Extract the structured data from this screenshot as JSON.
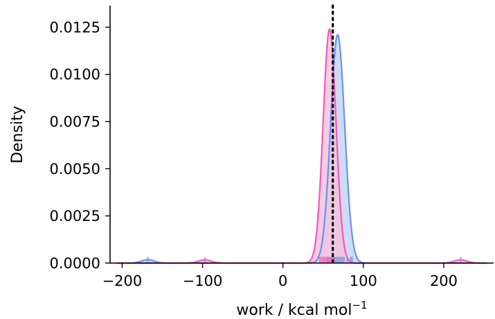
{
  "chart_data": {
    "type": "area",
    "xlabel": "work / kcal mol",
    "xlabel_superscript": "−1",
    "ylabel": "Density",
    "xlim": [
      -215,
      262
    ],
    "ylim": [
      0,
      0.01365
    ],
    "x_ticks": [
      -200,
      -100,
      0,
      100,
      200
    ],
    "x_tick_labels": [
      "−200",
      "−100",
      "0",
      "100",
      "200"
    ],
    "y_ticks": [
      0,
      0.0025,
      0.005,
      0.0075,
      0.01,
      0.0125
    ],
    "y_tick_labels": [
      "0.0000",
      "0.0025",
      "0.0050",
      "0.0075",
      "0.0100",
      "0.0125"
    ],
    "grid": false,
    "legend": "none",
    "series": [
      {
        "color": "#6495ED",
        "fill": "#C9D4F3",
        "components": [
          {
            "center": 68,
            "sd": 8.8,
            "peak": 0.0121
          },
          {
            "center": -168,
            "sd": 8.0,
            "peak": 0.00018
          }
        ],
        "rug": [
          -168,
          56,
          60,
          64,
          66,
          68,
          70,
          72,
          74,
          76,
          80,
          84,
          86
        ]
      },
      {
        "color": "#F15BB5",
        "fill": "#F3C3DF",
        "components": [
          {
            "center": 58,
            "sd": 8.0,
            "peak": 0.0124
          },
          {
            "center": -97,
            "sd": 8.0,
            "peak": 0.00017
          },
          {
            "center": 221,
            "sd": 8.0,
            "peak": 0.00017
          }
        ],
        "rug": [
          -97,
          46,
          48,
          50,
          52,
          54,
          56,
          58,
          60,
          62,
          64,
          221
        ]
      }
    ],
    "reference_line": {
      "x": 62,
      "style": "dotted",
      "color": "#000000"
    }
  }
}
